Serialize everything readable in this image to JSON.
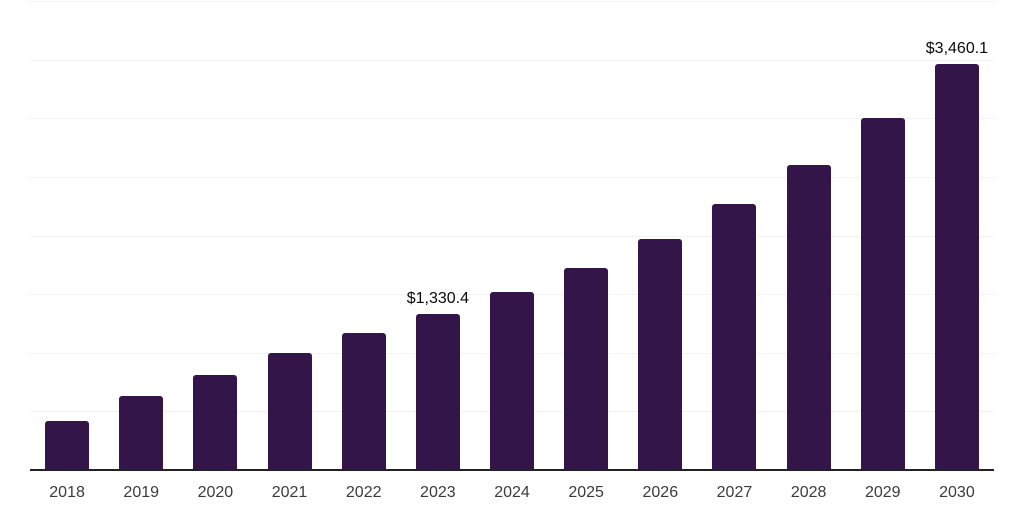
{
  "chart_data": {
    "type": "bar",
    "title": "",
    "xlabel": "",
    "ylabel": "",
    "categories": [
      "2018",
      "2019",
      "2020",
      "2021",
      "2022",
      "2023",
      "2024",
      "2025",
      "2026",
      "2027",
      "2028",
      "2029",
      "2030"
    ],
    "values": [
      415,
      630,
      810,
      995,
      1170,
      1330.4,
      1515,
      1725,
      1970,
      2265,
      2605,
      3000,
      3460.1
    ],
    "bar_labels": [
      "",
      "",
      "",
      "",
      "",
      "$1,330.4",
      "",
      "",
      "",
      "",
      "",
      "",
      "$3,460.1"
    ],
    "ylim": [
      0,
      4000
    ],
    "gridline_step": 500,
    "grid": "horizontal",
    "legend": "none",
    "y_axis_tick_labels_visible": false,
    "colors": {
      "bar": "#331549",
      "gridline": "#f2f2f4",
      "axis_line": "#222222",
      "tick_label": "#3b3b3b",
      "value_label": "#0a0a0a",
      "background": "#ffffff"
    }
  }
}
